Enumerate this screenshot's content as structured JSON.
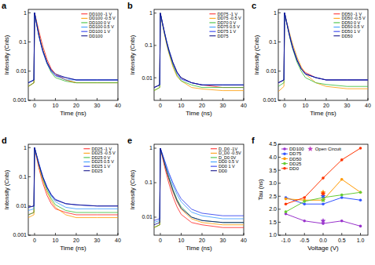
{
  "chart_data": [
    {
      "type": "line",
      "title": "a",
      "x_label": "Time (ns)",
      "y_label": "Intensity (Cnts)",
      "log": "y",
      "legend": "upper right",
      "xlim": [
        -3,
        40
      ],
      "xticks": [
        0,
        10,
        20,
        30,
        40
      ],
      "ylim": [
        0.001,
        1.3
      ],
      "yticks": [
        0.001,
        0.01,
        0.1,
        1
      ],
      "x": [
        -3,
        -0.3,
        0,
        1,
        2,
        3,
        4,
        6,
        8,
        10,
        15,
        20,
        30,
        40
      ],
      "series": [
        {
          "name": "DD100 -1 V",
          "color": "#ff2020",
          "values": [
            0.003,
            0.004,
            1,
            0.5,
            0.25,
            0.13,
            0.07,
            0.025,
            0.012,
            0.008,
            0.005,
            0.004,
            0.004,
            0.004
          ]
        },
        {
          "name": "DD100 -0.5 V",
          "color": "#ff9900",
          "values": [
            0.003,
            0.004,
            1,
            0.45,
            0.2,
            0.1,
            0.055,
            0.02,
            0.01,
            0.007,
            0.005,
            0.004,
            0.004,
            0.004
          ]
        },
        {
          "name": "DD100 0 V",
          "color": "#33bb33",
          "values": [
            0.003,
            0.004,
            1,
            0.42,
            0.18,
            0.09,
            0.05,
            0.018,
            0.009,
            0.006,
            0.0045,
            0.004,
            0.004,
            0.004
          ]
        },
        {
          "name": "DD100 0.5 V",
          "color": "#3399ff",
          "values": [
            0.004,
            0.005,
            1,
            0.42,
            0.18,
            0.09,
            0.05,
            0.02,
            0.01,
            0.007,
            0.005,
            0.005,
            0.005,
            0.005
          ]
        },
        {
          "name": "DD100 1 V",
          "color": "#2233ee",
          "values": [
            0.004,
            0.005,
            1,
            0.4,
            0.17,
            0.085,
            0.045,
            0.018,
            0.01,
            0.007,
            0.006,
            0.005,
            0.005,
            0.005
          ]
        },
        {
          "name": "DD100",
          "color": "#000080",
          "values": [
            0.004,
            0.005,
            1,
            0.42,
            0.18,
            0.09,
            0.05,
            0.02,
            0.011,
            0.008,
            0.006,
            0.005,
            0.005,
            0.005
          ]
        }
      ]
    },
    {
      "type": "line",
      "title": "b",
      "x_label": "Time (ns)",
      "y_label": "Intensity (Cnts)",
      "log": "y",
      "legend": "upper right",
      "xlim": [
        -3,
        40
      ],
      "xticks": [
        0,
        10,
        20,
        30,
        40
      ],
      "ylim": [
        0.002,
        1.3
      ],
      "yticks": [
        0.01,
        0.1,
        1
      ],
      "x": [
        -3,
        -0.3,
        0,
        1,
        2,
        3,
        4,
        6,
        8,
        10,
        15,
        20,
        30,
        40
      ],
      "series": [
        {
          "name": "DD75 -1 V",
          "color": "#ff2020",
          "values": [
            0.005,
            0.006,
            1,
            0.5,
            0.25,
            0.13,
            0.075,
            0.03,
            0.015,
            0.01,
            0.007,
            0.006,
            0.005,
            0.005
          ]
        },
        {
          "name": "DD75 -0.5 V",
          "color": "#ff9900",
          "values": [
            0.004,
            0.005,
            1,
            0.45,
            0.22,
            0.11,
            0.06,
            0.022,
            0.011,
            0.008,
            0.005,
            0.0045,
            0.004,
            0.004
          ]
        },
        {
          "name": "DD70 0 V",
          "color": "#33bb33",
          "values": [
            0.004,
            0.005,
            1,
            0.47,
            0.23,
            0.12,
            0.065,
            0.025,
            0.012,
            0.008,
            0.006,
            0.005,
            0.005,
            0.005
          ]
        },
        {
          "name": "DD75 0.5 V",
          "color": "#3399ff",
          "values": [
            0.005,
            0.006,
            1,
            0.5,
            0.26,
            0.14,
            0.08,
            0.03,
            0.015,
            0.01,
            0.007,
            0.006,
            0.006,
            0.006
          ]
        },
        {
          "name": "DD75 1 V",
          "color": "#2233ee",
          "values": [
            0.005,
            0.006,
            1,
            0.48,
            0.24,
            0.13,
            0.07,
            0.028,
            0.014,
            0.009,
            0.007,
            0.006,
            0.006,
            0.006
          ]
        },
        {
          "name": "DD75",
          "color": "#000080",
          "values": [
            0.005,
            0.006,
            1,
            0.5,
            0.25,
            0.13,
            0.075,
            0.03,
            0.015,
            0.01,
            0.007,
            0.006,
            0.006,
            0.006
          ]
        }
      ]
    },
    {
      "type": "line",
      "title": "c",
      "x_label": "Time (ns)",
      "y_label": "Intensity (Cnts)",
      "log": "y",
      "legend": "upper right",
      "xlim": [
        -3,
        40
      ],
      "xticks": [
        0,
        10,
        20,
        30,
        40
      ],
      "ylim": [
        0.001,
        1.3
      ],
      "yticks": [
        0.001,
        0.01,
        0.1,
        1
      ],
      "x": [
        -3,
        -0.3,
        0,
        1,
        2,
        3,
        4,
        6,
        8,
        10,
        15,
        20,
        30,
        40
      ],
      "series": [
        {
          "name": "DD50 -1 V",
          "color": "#ff2020",
          "values": [
            0.004,
            0.005,
            1,
            0.48,
            0.23,
            0.12,
            0.065,
            0.025,
            0.013,
            0.009,
            0.006,
            0.005,
            0.005,
            0.005
          ]
        },
        {
          "name": "DD50 -0.5 V",
          "color": "#ff9900",
          "values": [
            0.002,
            0.003,
            1,
            0.5,
            0.26,
            0.14,
            0.08,
            0.03,
            0.014,
            0.008,
            0.004,
            0.003,
            0.0025,
            0.0025
          ]
        },
        {
          "name": "DD50 0 V",
          "color": "#33bb33",
          "values": [
            0.003,
            0.004,
            1,
            0.45,
            0.21,
            0.1,
            0.055,
            0.02,
            0.01,
            0.006,
            0.004,
            0.0035,
            0.003,
            0.003
          ]
        },
        {
          "name": "DD50 0.5 V",
          "color": "#3399ff",
          "values": [
            0.004,
            0.005,
            1,
            0.48,
            0.23,
            0.12,
            0.065,
            0.025,
            0.012,
            0.008,
            0.006,
            0.005,
            0.005,
            0.005
          ]
        },
        {
          "name": "DD50 1 V",
          "color": "#2233ee",
          "values": [
            0.004,
            0.005,
            1,
            0.47,
            0.22,
            0.11,
            0.06,
            0.024,
            0.012,
            0.008,
            0.006,
            0.005,
            0.005,
            0.005
          ]
        },
        {
          "name": "DD50",
          "color": "#000080",
          "values": [
            0.004,
            0.005,
            1,
            0.46,
            0.22,
            0.11,
            0.06,
            0.023,
            0.012,
            0.008,
            0.006,
            0.005,
            0.005,
            0.005
          ]
        }
      ]
    },
    {
      "type": "line",
      "title": "d",
      "x_label": "Time (ns)",
      "y_label": "Intensity (Cnts)",
      "log": "y",
      "legend": "upper right",
      "xlim": [
        -3,
        40
      ],
      "xticks": [
        0,
        10,
        20,
        30,
        40
      ],
      "ylim": [
        0.001,
        1.3
      ],
      "yticks": [
        0.001,
        0.01,
        0.1,
        1
      ],
      "x": [
        -3,
        -0.3,
        0,
        1,
        2,
        3,
        4,
        6,
        8,
        10,
        15,
        20,
        30,
        40
      ],
      "series": [
        {
          "name": "DD25 -1 V",
          "color": "#ff2020",
          "values": [
            0.005,
            0.006,
            1,
            0.45,
            0.21,
            0.11,
            0.06,
            0.023,
            0.012,
            0.008,
            0.006,
            0.005,
            0.005,
            0.005
          ]
        },
        {
          "name": "DD25 -0.5 V",
          "color": "#ff9900",
          "values": [
            0.004,
            0.005,
            1,
            0.5,
            0.25,
            0.13,
            0.075,
            0.03,
            0.015,
            0.009,
            0.005,
            0.004,
            0.004,
            0.004
          ]
        },
        {
          "name": "DD25 0 V",
          "color": "#33bb33",
          "values": [
            0.005,
            0.006,
            1,
            0.52,
            0.27,
            0.15,
            0.085,
            0.035,
            0.018,
            0.011,
            0.007,
            0.006,
            0.006,
            0.006
          ]
        },
        {
          "name": "DD25 0.5 V",
          "color": "#3399ff",
          "values": [
            0.007,
            0.008,
            1,
            0.55,
            0.3,
            0.17,
            0.1,
            0.042,
            0.022,
            0.014,
            0.009,
            0.008,
            0.008,
            0.008
          ]
        },
        {
          "name": "DD25 1 V",
          "color": "#2233ee",
          "values": [
            0.009,
            0.01,
            1,
            0.55,
            0.3,
            0.17,
            0.1,
            0.045,
            0.025,
            0.017,
            0.012,
            0.011,
            0.01,
            0.01
          ]
        },
        {
          "name": "DD25",
          "color": "#000080",
          "values": [
            0.009,
            0.01,
            1,
            0.52,
            0.28,
            0.16,
            0.095,
            0.042,
            0.024,
            0.016,
            0.012,
            0.011,
            0.01,
            0.01
          ]
        }
      ]
    },
    {
      "type": "line",
      "title": "e",
      "x_label": "Time (ns)",
      "y_label": "Intensity (Cnts)",
      "log": "y",
      "legend": "upper right",
      "xlim": [
        -3,
        40
      ],
      "xticks": [
        0,
        10,
        20,
        30,
        40
      ],
      "ylim": [
        0.003,
        1.3
      ],
      "yticks": [
        0.01,
        0.1,
        1
      ],
      "x": [
        -3,
        -0.3,
        0,
        1,
        2,
        3,
        4,
        6,
        8,
        10,
        15,
        20,
        30,
        40
      ],
      "series": [
        {
          "name": "D_D0 -1V",
          "color": "#ff2020",
          "values": [
            0.005,
            0.006,
            1,
            0.55,
            0.3,
            0.17,
            0.1,
            0.04,
            0.02,
            0.012,
            0.007,
            0.006,
            0.005,
            0.005
          ]
        },
        {
          "name": "D_D0 -0.5V",
          "color": "#ff9900",
          "values": [
            0.005,
            0.006,
            1,
            0.6,
            0.35,
            0.21,
            0.13,
            0.055,
            0.028,
            0.017,
            0.009,
            0.007,
            0.006,
            0.006
          ]
        },
        {
          "name": "D_D0 0V",
          "color": "#33bb33",
          "values": [
            0.005,
            0.006,
            1,
            0.62,
            0.38,
            0.23,
            0.15,
            0.065,
            0.033,
            0.02,
            0.01,
            0.008,
            0.007,
            0.007
          ]
        },
        {
          "name": "DD0 0.5 V",
          "color": "#3399ff",
          "values": [
            0.007,
            0.008,
            1,
            0.65,
            0.42,
            0.27,
            0.18,
            0.085,
            0.045,
            0.028,
            0.014,
            0.011,
            0.009,
            0.009
          ]
        },
        {
          "name": "DD0 1 V",
          "color": "#2233ee",
          "values": [
            0.008,
            0.009,
            1,
            0.68,
            0.45,
            0.3,
            0.2,
            0.1,
            0.055,
            0.034,
            0.017,
            0.013,
            0.011,
            0.011
          ]
        },
        {
          "name": "DD0",
          "color": "#000080",
          "values": [
            0.006,
            0.007,
            1,
            0.6,
            0.36,
            0.22,
            0.14,
            0.06,
            0.03,
            0.018,
            0.01,
            0.008,
            0.007,
            0.007
          ]
        }
      ]
    },
    {
      "type": "line",
      "title": "f",
      "x_label": "Voltage (V)",
      "y_label": "Tau (ns)",
      "legend": "upper left",
      "xlim": [
        -1.2,
        1.2
      ],
      "xticks": [
        {
          "value": -1,
          "label": "-1.0"
        },
        -0.5,
        {
          "value": 0,
          "label": "0.0"
        },
        0.5,
        {
          "value": 1,
          "label": "1.0"
        }
      ],
      "ylim": [
        1,
        4.5
      ],
      "yticks": [
        {
          "value": 1,
          "label": "1.0"
        },
        1.5,
        {
          "value": 2,
          "label": "2.0"
        },
        2.5,
        {
          "value": 3,
          "label": "3.0"
        },
        3.5,
        {
          "value": 4,
          "label": "4.0"
        },
        4.5
      ],
      "x": [
        -1,
        -0.5,
        0,
        0.5,
        1
      ],
      "series": [
        {
          "name": "DD100",
          "color": "#9933cc",
          "marker": "circle",
          "values": [
            1.82,
            1.55,
            1.45,
            1.55,
            1.35
          ]
        },
        {
          "name": "DD75",
          "color": "#3355ff",
          "marker": "circle",
          "values": [
            2.45,
            2.2,
            2.2,
            2.45,
            2.35
          ]
        },
        {
          "name": "DD50",
          "color": "#ff9900",
          "marker": "circle",
          "values": [
            2.4,
            2.35,
            2.35,
            3.15,
            2.65
          ]
        },
        {
          "name": "DD25",
          "color": "#66cc33",
          "marker": "circle",
          "values": [
            1.9,
            2.3,
            2.45,
            2.55,
            2.65
          ]
        },
        {
          "name": "DD0",
          "color": "#ff3300",
          "marker": "circle",
          "values": [
            2.2,
            2.45,
            3.2,
            3.9,
            4.35
          ]
        },
        {
          "name": "Open Circuit",
          "type": "scatter",
          "marker": "star",
          "color": "#c040c0",
          "colors": [
            "#9933cc",
            "#3355ff",
            "#ff9900",
            "#66cc33",
            "#ff3300"
          ],
          "x": [
            0,
            0,
            0,
            0,
            0
          ],
          "values": [
            1.55,
            2.5,
            2.65,
            2.35,
            2.6
          ]
        }
      ]
    }
  ]
}
